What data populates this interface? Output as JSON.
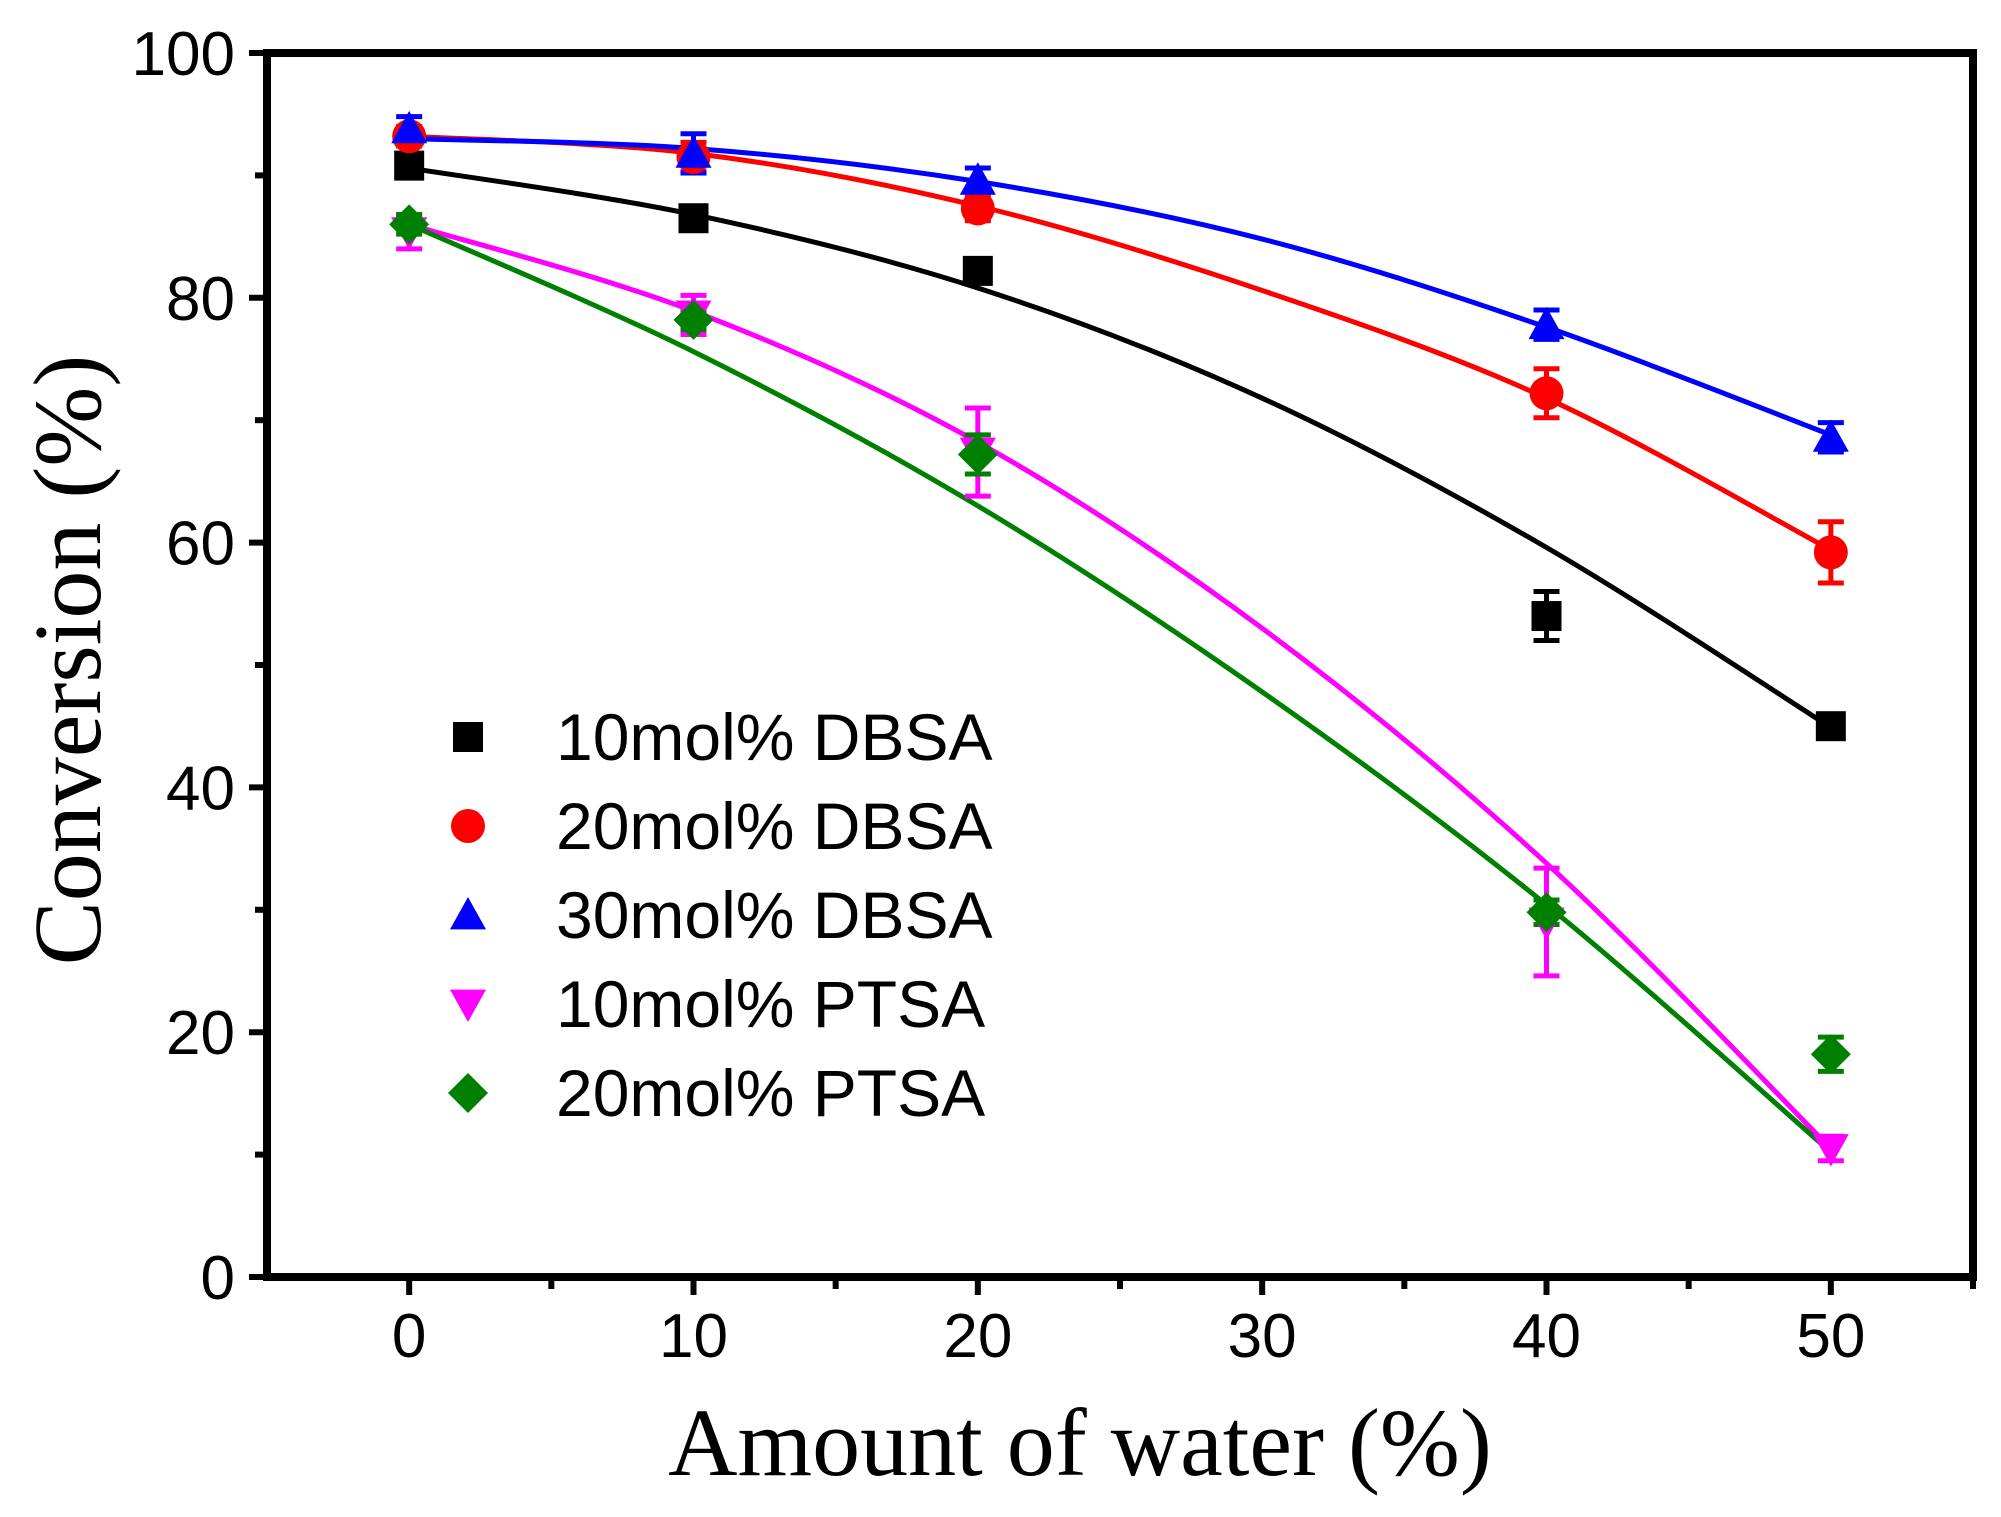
{
  "chart_data": {
    "type": "scatter",
    "title": "",
    "xlabel": "Amount of water (%)",
    "ylabel": "Conversion  (%)",
    "xlim": [
      -5,
      55
    ],
    "ylim": [
      0,
      100
    ],
    "xticks": [
      0,
      10,
      20,
      30,
      40,
      50
    ],
    "yticks": [
      0,
      20,
      40,
      60,
      80,
      100
    ],
    "xtick_labels": [
      "0",
      "10",
      "20",
      "30",
      "40",
      "50"
    ],
    "ytick_labels": [
      "0",
      "20",
      "40",
      "60",
      "80",
      "100"
    ],
    "grid": false,
    "legend_position": "center-left",
    "series": [
      {
        "name": "10mol% DBSA",
        "color": "#000000",
        "marker": "square",
        "x": [
          0,
          10,
          20,
          40,
          50
        ],
        "y": [
          90.8,
          86.5,
          82.2,
          54.0,
          45.0
        ],
        "err": [
          0.8,
          0.8,
          1.0,
          2.0,
          0.8
        ],
        "fit": [
          [
            0,
            90.6
          ],
          [
            10,
            86.8
          ],
          [
            20,
            80.8
          ],
          [
            30,
            71.8
          ],
          [
            40,
            59.6
          ],
          [
            50,
            44.9
          ]
        ]
      },
      {
        "name": "20mol% DBSA",
        "color": "#ff0000",
        "marker": "circle",
        "x": [
          0,
          10,
          20,
          40,
          50
        ],
        "y": [
          93.2,
          91.5,
          87.3,
          72.2,
          59.2
        ],
        "err": [
          0.8,
          1.2,
          1.0,
          2.0,
          2.5
        ],
        "fit": [
          [
            0,
            93.2
          ],
          [
            10,
            91.8
          ],
          [
            20,
            87.5
          ],
          [
            30,
            80.6
          ],
          [
            40,
            71.8
          ],
          [
            50,
            59.4
          ]
        ]
      },
      {
        "name": "30mol% DBSA",
        "color": "#0000ff",
        "marker": "triangle-up",
        "x": [
          0,
          10,
          20,
          40,
          50
        ],
        "y": [
          93.8,
          91.8,
          89.6,
          77.8,
          68.6
        ],
        "err": [
          1.0,
          1.6,
          1.0,
          1.2,
          1.2
        ],
        "fit": [
          [
            0,
            93.0
          ],
          [
            10,
            92.2
          ],
          [
            20,
            89.5
          ],
          [
            30,
            84.8
          ],
          [
            40,
            77.6
          ],
          [
            50,
            68.8
          ]
        ]
      },
      {
        "name": "10mol% PTSA",
        "color": "#ff00ff",
        "marker": "triangle-down",
        "x": [
          0,
          10,
          20,
          40,
          50
        ],
        "y": [
          85.4,
          78.6,
          67.4,
          29.0,
          10.5
        ],
        "err": [
          1.4,
          1.6,
          3.6,
          4.4,
          1.0
        ],
        "fit": [
          [
            0,
            86.0
          ],
          [
            10,
            78.9
          ],
          [
            20,
            68.2
          ],
          [
            30,
            53.0
          ],
          [
            40,
            33.8
          ],
          [
            50,
            10.5
          ]
        ]
      },
      {
        "name": "20mol% PTSA",
        "color": "#008000",
        "marker": "diamond",
        "x": [
          0,
          10,
          20,
          40,
          50
        ],
        "y": [
          86.0,
          78.2,
          67.2,
          29.8,
          18.2
        ],
        "err": [
          0.8,
          0.8,
          1.6,
          1.0,
          1.4
        ],
        "fit": [
          [
            0,
            86.0
          ],
          [
            10,
            75.6
          ],
          [
            20,
            63.0
          ],
          [
            30,
            47.8
          ],
          [
            40,
            30.4
          ],
          [
            50,
            10.2
          ]
        ]
      }
    ]
  }
}
